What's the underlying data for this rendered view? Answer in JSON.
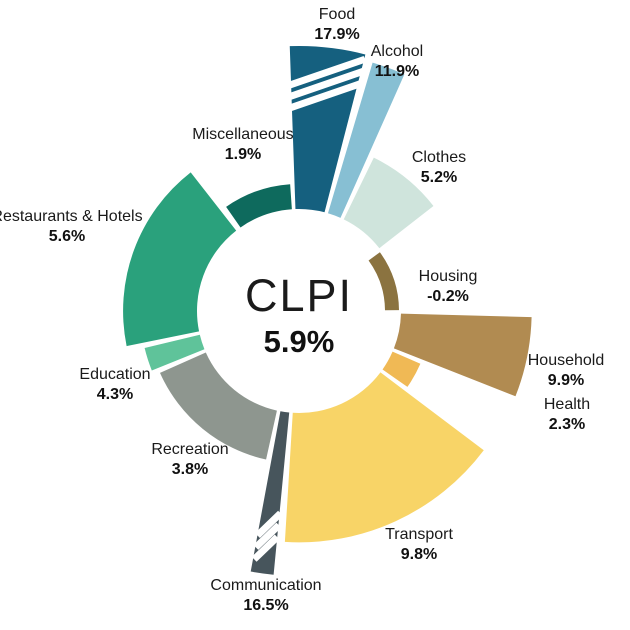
{
  "center": {
    "title": "CLPI",
    "value": "5.9%"
  },
  "chart_data": {
    "type": "polar_bar",
    "title": "CLPI",
    "total_label": "CLPI",
    "total_value": "5.9%",
    "unit": "%",
    "legend_position": "labels-around-wedges",
    "grid": false,
    "radial_axis": {
      "baseline": 0,
      "display_cap_percent": 12.3,
      "note_truncated_segments": [
        "Food",
        "Communication"
      ]
    },
    "categories": [
      {
        "label": "Food",
        "value": 17.9,
        "value_label": "17.9%",
        "color": "#15607f",
        "angle_start": -2,
        "angle_end": 14.5,
        "truncated": true
      },
      {
        "label": "Alcohol",
        "value": 11.9,
        "value_label": "11.9%",
        "color": "#87bfd3",
        "angle_start": 16.5,
        "angle_end": 24,
        "truncated": false
      },
      {
        "label": "Clothes",
        "value": 5.2,
        "value_label": "5.2%",
        "color": "#cfe4dc",
        "angle_start": 26,
        "angle_end": 52,
        "truncated": false
      },
      {
        "label": "Housing",
        "value": -0.2,
        "value_label": "-0.2%",
        "color": "#8b7340",
        "angle_start": 54,
        "angle_end": 89.5,
        "truncated": false
      },
      {
        "label": "Household",
        "value": 9.9,
        "value_label": "9.9%",
        "color": "#b18b51",
        "angle_start": 91.5,
        "angle_end": 111.5,
        "truncated": false
      },
      {
        "label": "Health",
        "value": 2.3,
        "value_label": "2.3%",
        "color": "#f0b955",
        "angle_start": 113.5,
        "angle_end": 125,
        "truncated": false
      },
      {
        "label": "Transport",
        "value": 9.8,
        "value_label": "9.8%",
        "color": "#f8d467",
        "angle_start": 127,
        "angle_end": 183.5,
        "truncated": false
      },
      {
        "label": "Communication",
        "value": 16.5,
        "value_label": "16.5%",
        "color": "#47555c",
        "angle_start": 185.5,
        "angle_end": 190.5,
        "truncated": true
      },
      {
        "label": "Recreation",
        "value": 3.8,
        "value_label": "3.8%",
        "color": "#8e968f",
        "angle_start": 192.5,
        "angle_end": 246,
        "truncated": false
      },
      {
        "label": "Education",
        "value": 4.3,
        "value_label": "4.3%",
        "color": "#5fc39a",
        "angle_start": 248,
        "angle_end": 256.5,
        "truncated": false
      },
      {
        "label": "Restaurants & Hotels",
        "value": 5.6,
        "value_label": "5.6%",
        "color": "#2aa17c",
        "angle_start": 258.5,
        "angle_end": 322,
        "truncated": false
      },
      {
        "label": "Miscellaneous",
        "value": 1.9,
        "value_label": "1.9%",
        "color": "#0e6a5d",
        "angle_start": 325,
        "angle_end": 356,
        "truncated": false
      }
    ]
  }
}
